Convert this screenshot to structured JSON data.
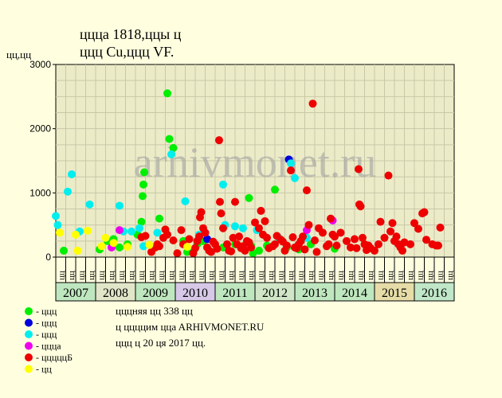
{
  "header": {
    "line1": "ццца 1818,ццы ц",
    "line2": "ццц Cu,ццц VF.",
    "yunit": "цц,цц"
  },
  "watermark": "arhivmonet.ru",
  "chart_data": {
    "type": "scatter",
    "title": "ццца 1818,ццы ц ццц Cu,ццц VF.",
    "ylabel": "цц,цц",
    "ylim": [
      0,
      3000
    ],
    "yticks": [
      0,
      1000,
      2000,
      3000
    ],
    "grid": true,
    "legend_position": "bottom-left",
    "years": [
      {
        "label": "2007",
        "color": "#bfe7bf"
      },
      {
        "label": "2008",
        "color": "#e1e6c8"
      },
      {
        "label": "2009",
        "color": "#bfe7bf"
      },
      {
        "label": "2010",
        "color": "#d6c8e6"
      },
      {
        "label": "2011",
        "color": "#bfe7bf"
      },
      {
        "label": "2012",
        "color": "#d0e6c6"
      },
      {
        "label": "2013",
        "color": "#bfe7bf"
      },
      {
        "label": "2014",
        "color": "#bfe7bf"
      },
      {
        "label": "2015",
        "color": "#e6dca8"
      },
      {
        "label": "2016",
        "color": "#bfe7c8"
      }
    ],
    "quarter_labels": [
      "цц",
      "цц",
      "цц",
      "цц",
      "цц",
      "цц",
      "цц",
      "цц",
      "цц",
      "цц",
      "цц",
      "цц",
      "цц",
      "цц",
      "цц",
      "цц",
      "цц",
      "цц",
      "цц",
      "цц",
      "цц",
      "цц",
      "цц",
      "цц",
      "цц",
      "цц",
      "цц",
      "цц",
      "цц",
      "цц",
      "цц",
      "цц",
      "цц",
      "цц",
      "цц",
      "цц",
      "цц",
      "цц",
      "цц",
      "цц"
    ],
    "series": [
      {
        "name": "- ццц",
        "color": "#00ee00",
        "points": [
          [
            2007.2,
            100
          ],
          [
            2008.1,
            120
          ],
          [
            2008.3,
            250
          ],
          [
            2008.45,
            280
          ],
          [
            2008.6,
            150
          ],
          [
            2008.8,
            200
          ],
          [
            2009.05,
            350
          ],
          [
            2009.15,
            550
          ],
          [
            2009.18,
            950
          ],
          [
            2009.2,
            1130
          ],
          [
            2009.22,
            1320
          ],
          [
            2009.6,
            600
          ],
          [
            2009.8,
            2550
          ],
          [
            2009.85,
            1840
          ],
          [
            2009.95,
            1700
          ],
          [
            2010.2,
            250
          ],
          [
            2010.3,
            80
          ],
          [
            2010.45,
            80
          ],
          [
            2010.55,
            200
          ],
          [
            2010.7,
            250
          ],
          [
            2011.2,
            150
          ],
          [
            2011.5,
            200
          ],
          [
            2011.85,
            920
          ],
          [
            2011.9,
            180
          ],
          [
            2011.95,
            60
          ],
          [
            2012.1,
            100
          ],
          [
            2012.3,
            180
          ],
          [
            2012.5,
            1050
          ],
          [
            2012.8,
            150
          ],
          [
            2013.1,
            120
          ],
          [
            2013.4,
            200
          ],
          [
            2014.0,
            130
          ]
        ]
      },
      {
        "name": "- ццц",
        "color": "#0000dd",
        "points": [
          [
            2010.8,
            280
          ],
          [
            2012.85,
            1520
          ]
        ]
      },
      {
        "name": "- ццц",
        "color": "#00eeee",
        "points": [
          [
            2007.0,
            640
          ],
          [
            2007.05,
            500
          ],
          [
            2007.3,
            1020
          ],
          [
            2007.4,
            1290
          ],
          [
            2007.6,
            400
          ],
          [
            2007.85,
            820
          ],
          [
            2008.6,
            800
          ],
          [
            2008.7,
            400
          ],
          [
            2008.9,
            400
          ],
          [
            2009.1,
            450
          ],
          [
            2009.2,
            170
          ],
          [
            2009.55,
            380
          ],
          [
            2009.9,
            1600
          ],
          [
            2010.25,
            870
          ],
          [
            2010.6,
            350
          ],
          [
            2011.2,
            1130
          ],
          [
            2011.25,
            500
          ],
          [
            2011.5,
            480
          ],
          [
            2011.7,
            450
          ],
          [
            2012.05,
            420
          ],
          [
            2012.6,
            300
          ],
          [
            2012.9,
            1460
          ],
          [
            2013.0,
            1230
          ],
          [
            2013.3,
            300
          ]
        ]
      },
      {
        "name": "- цццa",
        "color": "#ee00ee",
        "points": [
          [
            2008.4,
            150
          ],
          [
            2008.6,
            420
          ],
          [
            2013.3,
            420
          ],
          [
            2013.95,
            570
          ]
        ]
      },
      {
        "name": "- цццццБ",
        "color": "#ee0000",
        "points": [
          [
            2009.15,
            310
          ],
          [
            2009.25,
            330
          ],
          [
            2009.4,
            80
          ],
          [
            2009.5,
            150
          ],
          [
            2009.55,
            200
          ],
          [
            2009.6,
            170
          ],
          [
            2009.7,
            300
          ],
          [
            2009.75,
            430
          ],
          [
            2009.8,
            350
          ],
          [
            2009.95,
            260
          ],
          [
            2010.05,
            60
          ],
          [
            2010.15,
            420
          ],
          [
            2010.2,
            200
          ],
          [
            2010.35,
            280
          ],
          [
            2010.45,
            60
          ],
          [
            2010.5,
            140
          ],
          [
            2010.55,
            250
          ],
          [
            2010.6,
            320
          ],
          [
            2010.62,
            620
          ],
          [
            2010.65,
            700
          ],
          [
            2010.7,
            450
          ],
          [
            2010.75,
            380
          ],
          [
            2010.8,
            150
          ],
          [
            2010.85,
            100
          ],
          [
            2010.9,
            80
          ],
          [
            2010.95,
            240
          ],
          [
            2011.0,
            200
          ],
          [
            2011.05,
            130
          ],
          [
            2011.1,
            1820
          ],
          [
            2011.12,
            860
          ],
          [
            2011.15,
            680
          ],
          [
            2011.2,
            450
          ],
          [
            2011.3,
            200
          ],
          [
            2011.35,
            100
          ],
          [
            2011.4,
            90
          ],
          [
            2011.45,
            300
          ],
          [
            2011.5,
            860
          ],
          [
            2011.55,
            200
          ],
          [
            2011.6,
            320
          ],
          [
            2011.65,
            140
          ],
          [
            2011.7,
            170
          ],
          [
            2011.75,
            100
          ],
          [
            2011.8,
            250
          ],
          [
            2011.85,
            230
          ],
          [
            2011.9,
            150
          ],
          [
            2012.0,
            540
          ],
          [
            2012.1,
            450
          ],
          [
            2012.15,
            720
          ],
          [
            2012.2,
            350
          ],
          [
            2012.25,
            560
          ],
          [
            2012.3,
            300
          ],
          [
            2012.35,
            140
          ],
          [
            2012.45,
            170
          ],
          [
            2012.5,
            200
          ],
          [
            2012.55,
            330
          ],
          [
            2012.65,
            270
          ],
          [
            2012.7,
            240
          ],
          [
            2012.75,
            100
          ],
          [
            2012.8,
            180
          ],
          [
            2012.9,
            1350
          ],
          [
            2012.95,
            310
          ],
          [
            2013.0,
            150
          ],
          [
            2013.05,
            140
          ],
          [
            2013.1,
            200
          ],
          [
            2013.15,
            250
          ],
          [
            2013.2,
            320
          ],
          [
            2013.25,
            120
          ],
          [
            2013.3,
            1040
          ],
          [
            2013.35,
            500
          ],
          [
            2013.45,
            2390
          ],
          [
            2013.5,
            260
          ],
          [
            2013.55,
            80
          ],
          [
            2013.6,
            450
          ],
          [
            2013.7,
            380
          ],
          [
            2013.8,
            170
          ],
          [
            2013.85,
            200
          ],
          [
            2013.9,
            600
          ],
          [
            2013.95,
            350
          ],
          [
            2014.0,
            320
          ],
          [
            2014.05,
            180
          ],
          [
            2014.15,
            380
          ],
          [
            2014.3,
            250
          ],
          [
            2014.4,
            150
          ],
          [
            2014.5,
            280
          ],
          [
            2014.55,
            140
          ],
          [
            2014.6,
            1370
          ],
          [
            2014.62,
            820
          ],
          [
            2014.65,
            790
          ],
          [
            2014.7,
            300
          ],
          [
            2014.75,
            200
          ],
          [
            2014.8,
            110
          ],
          [
            2014.85,
            180
          ],
          [
            2014.9,
            140
          ],
          [
            2015.0,
            100
          ],
          [
            2015.1,
            200
          ],
          [
            2015.15,
            550
          ],
          [
            2015.25,
            300
          ],
          [
            2015.35,
            1270
          ],
          [
            2015.4,
            400
          ],
          [
            2015.45,
            530
          ],
          [
            2015.5,
            250
          ],
          [
            2015.55,
            320
          ],
          [
            2015.6,
            200
          ],
          [
            2015.65,
            150
          ],
          [
            2015.7,
            100
          ],
          [
            2015.75,
            230
          ],
          [
            2015.9,
            200
          ],
          [
            2016.0,
            530
          ],
          [
            2016.1,
            440
          ],
          [
            2016.2,
            680
          ],
          [
            2016.25,
            700
          ],
          [
            2016.3,
            270
          ],
          [
            2016.45,
            200
          ],
          [
            2016.55,
            180
          ],
          [
            2016.6,
            180
          ],
          [
            2016.65,
            460
          ]
        ]
      },
      {
        "name": "- цц",
        "color": "#ffff00",
        "points": [
          [
            2007.1,
            380
          ],
          [
            2007.5,
            350
          ],
          [
            2007.55,
            100
          ],
          [
            2007.8,
            410
          ],
          [
            2008.15,
            170
          ],
          [
            2008.25,
            300
          ],
          [
            2008.45,
            220
          ],
          [
            2008.8,
            160
          ],
          [
            2009.35,
            190
          ],
          [
            2010.3,
            160
          ]
        ]
      }
    ]
  },
  "footer": {
    "line1": "цццняя цц 338 цц",
    "line2": "ц ццццим ццa ARHIVMONET.RU",
    "line3": "ццц ц 20 ця 2017 цц."
  }
}
